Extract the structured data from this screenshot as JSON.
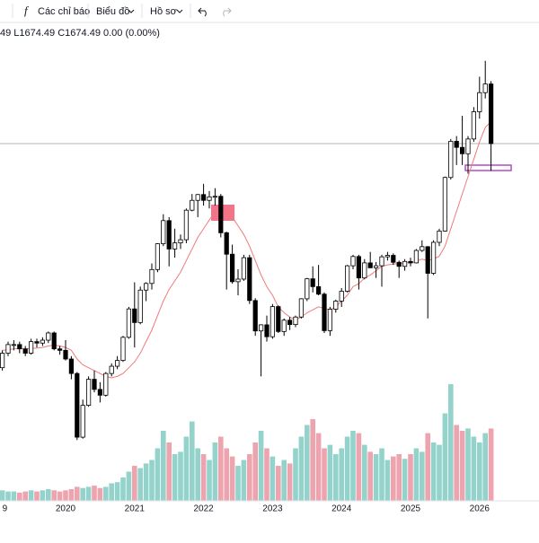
{
  "toolbar": {
    "indicators": "Các chỉ báo",
    "chart": "Biểu đồ",
    "profile": "Hồ sơ"
  },
  "chart_data": {
    "type": "candlestick",
    "legend_text": "49 L1674.49 C1674.49 0.00 (0.00%)",
    "categories": [
      "9",
      null,
      null,
      null,
      null,
      null,
      null,
      null,
      null,
      null,
      null,
      "2020",
      null,
      null,
      null,
      null,
      null,
      null,
      null,
      null,
      null,
      null,
      null,
      "2021",
      null,
      null,
      null,
      null,
      null,
      null,
      null,
      null,
      null,
      null,
      null,
      "2022",
      null,
      null,
      null,
      null,
      null,
      null,
      null,
      null,
      null,
      null,
      null,
      "2023",
      null,
      null,
      null,
      null,
      null,
      null,
      null,
      null,
      null,
      null,
      null,
      "2024",
      null,
      null,
      null,
      null,
      null,
      null,
      null,
      null,
      null,
      null,
      null,
      "2025",
      null,
      null,
      null,
      null,
      null,
      null,
      null,
      null,
      null,
      null,
      null,
      "2026",
      null,
      null
    ],
    "ohlc": [
      [
        900,
        960,
        890,
        950
      ],
      [
        950,
        990,
        940,
        980
      ],
      [
        980,
        995,
        960,
        980
      ],
      [
        980,
        990,
        950,
        965
      ],
      [
        965,
        975,
        940,
        950
      ],
      [
        950,
        1000,
        945,
        990
      ],
      [
        990,
        1000,
        970,
        985
      ],
      [
        985,
        1005,
        975,
        995
      ],
      [
        995,
        1025,
        985,
        1020
      ],
      [
        1020,
        1025,
        960,
        965
      ],
      [
        965,
        975,
        945,
        960
      ],
      [
        960,
        995,
        925,
        930
      ],
      [
        930,
        940,
        860,
        880
      ],
      [
        880,
        885,
        650,
        660
      ],
      [
        660,
        790,
        655,
        770
      ],
      [
        770,
        870,
        765,
        860
      ],
      [
        860,
        890,
        815,
        825
      ],
      [
        825,
        850,
        780,
        805
      ],
      [
        805,
        885,
        800,
        880
      ],
      [
        880,
        915,
        870,
        905
      ],
      [
        905,
        940,
        895,
        925
      ],
      [
        925,
        1010,
        920,
        1005
      ],
      [
        1005,
        1110,
        1000,
        1103
      ],
      [
        1103,
        1195,
        970,
        1056
      ],
      [
        1056,
        1180,
        1050,
        1168
      ],
      [
        1168,
        1195,
        1130,
        1191
      ],
      [
        1191,
        1260,
        1170,
        1239
      ],
      [
        1239,
        1330,
        1230,
        1328
      ],
      [
        1328,
        1430,
        1320,
        1408
      ],
      [
        1408,
        1420,
        1250,
        1310
      ],
      [
        1310,
        1380,
        1280,
        1331
      ],
      [
        1331,
        1360,
        1310,
        1342
      ],
      [
        1342,
        1450,
        1330,
        1444
      ],
      [
        1444,
        1500,
        1440,
        1478
      ],
      [
        1478,
        1500,
        1420,
        1498
      ],
      [
        1498,
        1535,
        1460,
        1478
      ],
      [
        1478,
        1510,
        1450,
        1490
      ],
      [
        1490,
        1520,
        1460,
        1492
      ],
      [
        1492,
        1500,
        1350,
        1366
      ],
      [
        1366,
        1370,
        1170,
        1292
      ],
      [
        1292,
        1325,
        1190,
        1197
      ],
      [
        1197,
        1240,
        1150,
        1206
      ],
      [
        1206,
        1290,
        1200,
        1280
      ],
      [
        1280,
        1290,
        1120,
        1132
      ],
      [
        1132,
        1140,
        1010,
        1027
      ],
      [
        1027,
        1050,
        870,
        1048
      ],
      [
        1048,
        1080,
        990,
        1007
      ],
      [
        1007,
        1120,
        1000,
        1111
      ],
      [
        1111,
        1115,
        1020,
        1025
      ],
      [
        1025,
        1070,
        1010,
        1064
      ],
      [
        1064,
        1075,
        1030,
        1049
      ],
      [
        1049,
        1080,
        1040,
        1075
      ],
      [
        1075,
        1140,
        1070,
        1138
      ],
      [
        1138,
        1210,
        1130,
        1207
      ],
      [
        1207,
        1250,
        1160,
        1180
      ],
      [
        1180,
        1255,
        1150,
        1154
      ],
      [
        1154,
        1160,
        1020,
        1028
      ],
      [
        1028,
        1110,
        1010,
        1102
      ],
      [
        1102,
        1135,
        1090,
        1130
      ],
      [
        1130,
        1175,
        1110,
        1164
      ],
      [
        1164,
        1255,
        1160,
        1252
      ],
      [
        1252,
        1290,
        1240,
        1284
      ],
      [
        1284,
        1290,
        1170,
        1210
      ],
      [
        1210,
        1275,
        1205,
        1262
      ],
      [
        1262,
        1300,
        1245,
        1245
      ],
      [
        1245,
        1265,
        1210,
        1252
      ],
      [
        1252,
        1290,
        1180,
        1283
      ],
      [
        1283,
        1300,
        1270,
        1288
      ],
      [
        1288,
        1295,
        1255,
        1264
      ],
      [
        1264,
        1270,
        1210,
        1250
      ],
      [
        1250,
        1275,
        1235,
        1267
      ],
      [
        1267,
        1280,
        1250,
        1262
      ],
      [
        1262,
        1310,
        1260,
        1305
      ],
      [
        1305,
        1340,
        1300,
        1318
      ],
      [
        1318,
        1320,
        1070,
        1226
      ],
      [
        1226,
        1340,
        1220,
        1333
      ],
      [
        1333,
        1380,
        1320,
        1372
      ],
      [
        1372,
        1560,
        1370,
        1557
      ],
      [
        1557,
        1690,
        1550,
        1682
      ],
      [
        1682,
        1700,
        1600,
        1661
      ],
      [
        1661,
        1770,
        1600,
        1639
      ],
      [
        1639,
        1700,
        1570,
        1690
      ],
      [
        1690,
        1800,
        1680,
        1784
      ],
      [
        1784,
        1905,
        1760,
        1850
      ],
      [
        1850,
        1960,
        1830,
        1880
      ],
      [
        1880,
        1890,
        1580,
        1674
      ]
    ],
    "ma": [
      960,
      962,
      965,
      966,
      965,
      966,
      968,
      970,
      975,
      978,
      975,
      970,
      960,
      930,
      910,
      900,
      890,
      880,
      870,
      865,
      870,
      880,
      900,
      920,
      950,
      990,
      1030,
      1080,
      1130,
      1170,
      1200,
      1230,
      1270,
      1310,
      1350,
      1380,
      1410,
      1440,
      1450,
      1440,
      1420,
      1390,
      1360,
      1320,
      1270,
      1220,
      1180,
      1150,
      1110,
      1090,
      1075,
      1065,
      1075,
      1090,
      1100,
      1110,
      1105,
      1100,
      1110,
      1130,
      1150,
      1180,
      1190,
      1210,
      1220,
      1235,
      1250,
      1255,
      1258,
      1260,
      1262,
      1262,
      1268,
      1275,
      1270,
      1275,
      1285,
      1320,
      1380,
      1440,
      1500,
      1560,
      1620,
      1680,
      1730,
      1750
    ],
    "volume": [
      9,
      8,
      8,
      7,
      8,
      9,
      8,
      9,
      10,
      9,
      8,
      9,
      10,
      12,
      11,
      12,
      13,
      11,
      12,
      15,
      16,
      20,
      25,
      30,
      28,
      32,
      35,
      45,
      60,
      50,
      40,
      42,
      55,
      68,
      45,
      40,
      35,
      50,
      55,
      45,
      38,
      30,
      35,
      40,
      50,
      60,
      45,
      38,
      30,
      35,
      32,
      45,
      55,
      65,
      70,
      58,
      45,
      48,
      40,
      45,
      55,
      60,
      58,
      48,
      42,
      40,
      45,
      35,
      38,
      40,
      36,
      40,
      45,
      42,
      58,
      50,
      48,
      75,
      100,
      65,
      60,
      62,
      55,
      50,
      58,
      62
    ],
    "ylim": [
      434,
      2077
    ],
    "vlim": [
      0,
      100
    ],
    "up_color": "#ffffff",
    "down_color": "#000000",
    "ma_color": "#f07a7a",
    "up_volume_color": "#93d3cb",
    "down_volume_color": "#eea4ae"
  }
}
